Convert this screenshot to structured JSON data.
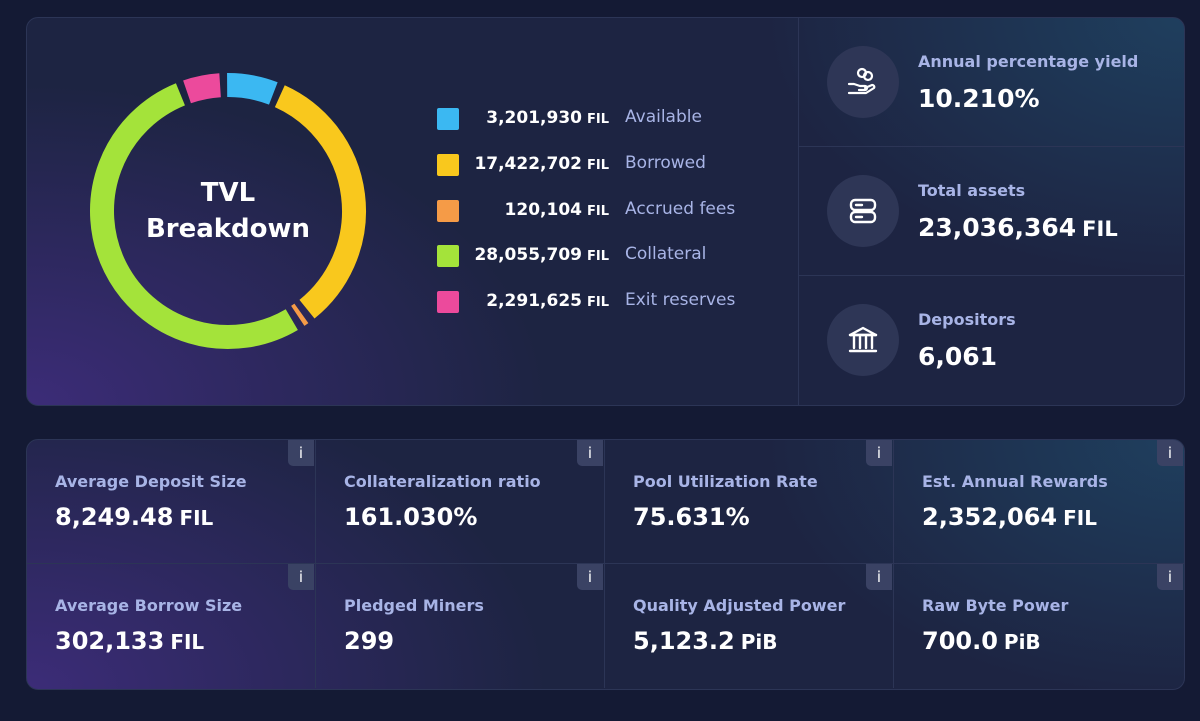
{
  "tvl": {
    "title_line1": "TVL",
    "title_line2": "Breakdown",
    "chart_data": {
      "type": "pie",
      "categories": [
        "Available",
        "Borrowed",
        "Accrued fees",
        "Collateral",
        "Exit reserves"
      ],
      "values": [
        3201930,
        17422702,
        120104,
        28055709,
        2291625
      ],
      "colors": [
        "#3bb8f2",
        "#f9c81d",
        "#f59b47",
        "#a4e33a",
        "#ec4a9c"
      ]
    },
    "legend": [
      {
        "value": "3,201,930",
        "unit": "FIL",
        "label": "Available",
        "color": "#3bb8f2"
      },
      {
        "value": "17,422,702",
        "unit": "FIL",
        "label": "Borrowed",
        "color": "#f9c81d"
      },
      {
        "value": "120,104",
        "unit": "FIL",
        "label": "Accrued fees",
        "color": "#f59b47"
      },
      {
        "value": "28,055,709",
        "unit": "FIL",
        "label": "Collateral",
        "color": "#a4e33a"
      },
      {
        "value": "2,291,625",
        "unit": "FIL",
        "label": "Exit reserves",
        "color": "#ec4a9c"
      }
    ]
  },
  "stats": [
    {
      "icon": "hand-coins-icon",
      "label": "Annual percentage yield",
      "value": "10.210%",
      "unit": ""
    },
    {
      "icon": "server-stack-icon",
      "label": "Total assets",
      "value": "23,036,364",
      "unit": "FIL"
    },
    {
      "icon": "bank-icon",
      "label": "Depositors",
      "value": "6,061",
      "unit": ""
    }
  ],
  "metrics": [
    {
      "label": "Average Deposit Size",
      "value": "8,249.48",
      "unit": "FIL",
      "info": "i"
    },
    {
      "label": "Collateralization ratio",
      "value": "161.030%",
      "unit": "",
      "info": "i"
    },
    {
      "label": "Pool Utilization Rate",
      "value": "75.631%",
      "unit": "",
      "info": "i"
    },
    {
      "label": "Est. Annual Rewards",
      "value": "2,352,064",
      "unit": "FIL",
      "info": "i"
    },
    {
      "label": "Average Borrow Size",
      "value": "302,133",
      "unit": "FIL",
      "info": "i"
    },
    {
      "label": "Pledged Miners",
      "value": "299",
      "unit": "",
      "info": "i"
    },
    {
      "label": "Quality Adjusted Power",
      "value": "5,123.2",
      "unit": "PiB",
      "info": "i"
    },
    {
      "label": "Raw Byte Power",
      "value": "700.0",
      "unit": "PiB",
      "info": "i"
    }
  ]
}
